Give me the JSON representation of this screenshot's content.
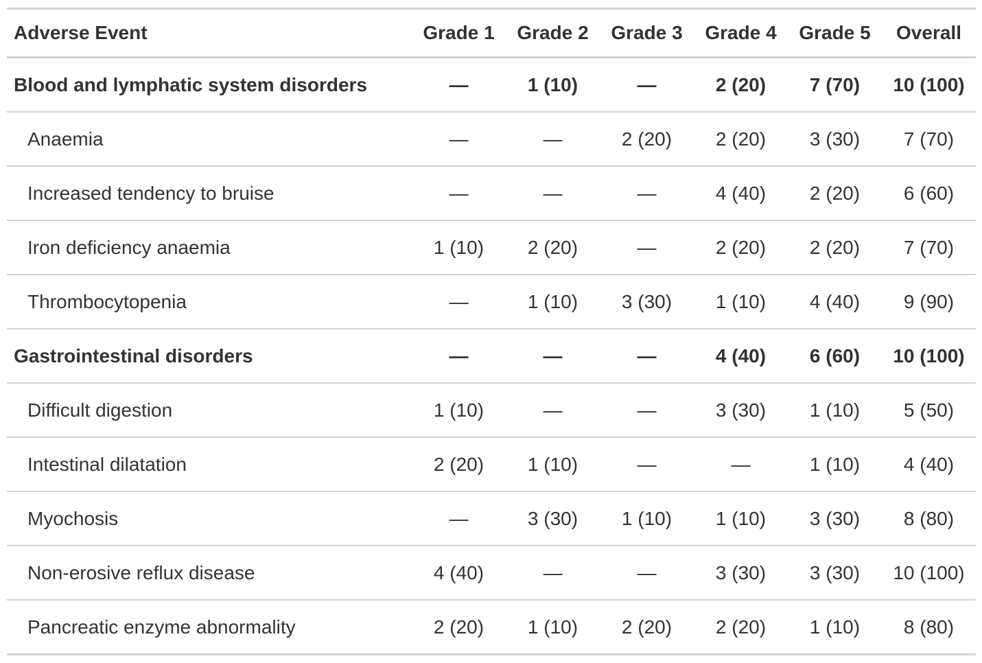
{
  "table": {
    "header": [
      "Adverse Event",
      "Grade 1",
      "Grade 2",
      "Grade 3",
      "Grade 4",
      "Grade 5",
      "Overall"
    ],
    "groups": [
      {
        "label": "Blood and lymphatic system disorders",
        "cells": [
          "—",
          "1 (10)",
          "—",
          "2 (20)",
          "7 (70)",
          "10 (100)"
        ],
        "rows": [
          {
            "label": "Anaemia",
            "cells": [
              "—",
              "—",
              "2 (20)",
              "2 (20)",
              "3 (30)",
              "7 (70)"
            ]
          },
          {
            "label": "Increased tendency to bruise",
            "cells": [
              "—",
              "—",
              "—",
              "4 (40)",
              "2 (20)",
              "6 (60)"
            ]
          },
          {
            "label": "Iron deficiency anaemia",
            "cells": [
              "1 (10)",
              "2 (20)",
              "—",
              "2 (20)",
              "2 (20)",
              "7 (70)"
            ]
          },
          {
            "label": "Thrombocytopenia",
            "cells": [
              "—",
              "1 (10)",
              "3 (30)",
              "1 (10)",
              "4 (40)",
              "9 (90)"
            ]
          }
        ]
      },
      {
        "label": "Gastrointestinal disorders",
        "cells": [
          "—",
          "—",
          "—",
          "4 (40)",
          "6 (60)",
          "10 (100)"
        ],
        "rows": [
          {
            "label": "Difficult digestion",
            "cells": [
              "1 (10)",
              "—",
              "—",
              "3 (30)",
              "1 (10)",
              "5 (50)"
            ]
          },
          {
            "label": "Intestinal dilatation",
            "cells": [
              "2 (20)",
              "1 (10)",
              "—",
              "—",
              "1 (10)",
              "4 (40)"
            ]
          },
          {
            "label": "Myochosis",
            "cells": [
              "—",
              "3 (30)",
              "1 (10)",
              "1 (10)",
              "3 (30)",
              "8 (80)"
            ]
          },
          {
            "label": "Non-erosive reflux disease",
            "cells": [
              "4 (40)",
              "—",
              "—",
              "3 (30)",
              "3 (30)",
              "10 (100)"
            ]
          },
          {
            "label": "Pancreatic enzyme abnormality",
            "cells": [
              "2 (20)",
              "1 (10)",
              "2 (20)",
              "2 (20)",
              "1 (10)",
              "8 (80)"
            ]
          }
        ]
      }
    ]
  }
}
